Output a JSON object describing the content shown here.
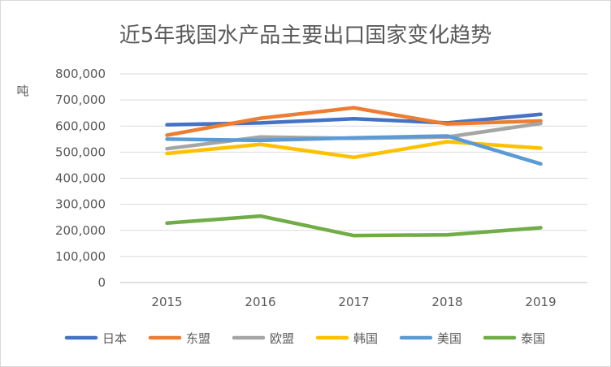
{
  "chart_data": {
    "type": "line",
    "title": "近5年我国水产品主要出口国家变化趋势",
    "ylabel": "吨",
    "xlabel": "",
    "categories": [
      "2015",
      "2016",
      "2017",
      "2018",
      "2019"
    ],
    "ylim": [
      0,
      800000
    ],
    "yticks": [
      "0",
      "100,000",
      "200,000",
      "300,000",
      "400,000",
      "500,000",
      "600,000",
      "700,000",
      "800,000"
    ],
    "grid": true,
    "legend_position": "bottom",
    "series": [
      {
        "name": "日本",
        "color": "#4472c4",
        "values": [
          605000,
          612000,
          628000,
          612000,
          645000
        ]
      },
      {
        "name": "东盟",
        "color": "#ed7d31",
        "values": [
          565000,
          630000,
          670000,
          608000,
          620000
        ]
      },
      {
        "name": "欧盟",
        "color": "#a5a5a5",
        "values": [
          513000,
          558000,
          553000,
          558000,
          610000
        ]
      },
      {
        "name": "韩国",
        "color": "#ffc000",
        "values": [
          495000,
          530000,
          480000,
          540000,
          515000
        ]
      },
      {
        "name": "美国",
        "color": "#5b9bd5",
        "values": [
          550000,
          545000,
          555000,
          562000,
          455000
        ]
      },
      {
        "name": "泰国",
        "color": "#70ad47",
        "values": [
          228000,
          255000,
          180000,
          183000,
          210000
        ]
      }
    ]
  }
}
